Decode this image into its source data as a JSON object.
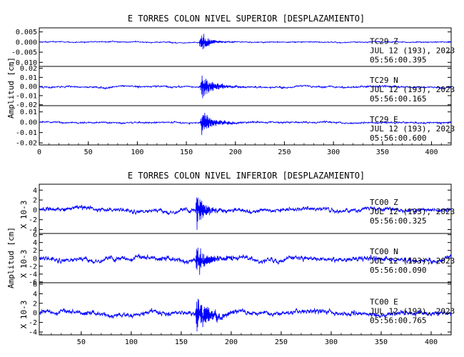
{
  "chart_data": [
    {
      "type": "line",
      "title": "E TORRES COLON NIVEL SUPERIOR [DESPLAZAMIENTO]",
      "ylabel": "Amplitud [cm]",
      "xlim": [
        0,
        420
      ],
      "x_ticks": [
        "0",
        "50",
        "100",
        "150",
        "200",
        "250",
        "300",
        "350",
        "400"
      ],
      "traces": [
        {
          "station": "TC29",
          "component": "Z",
          "date": "JUL 12 (193), 2023",
          "time": "05:56:00.395",
          "ylim": [
            -0.012,
            0.007
          ],
          "y_ticks": [
            "0.005",
            "0.000",
            "-0.005",
            "-0.010"
          ],
          "color": "#0000ff",
          "event_time": 163,
          "noise_amp": 0.0004,
          "peak_amp": 0.0065,
          "decay": 9
        },
        {
          "station": "TC29",
          "component": "N",
          "date": "JUL 12 (193), 2023",
          "time": "05:56:00.165",
          "ylim": [
            -0.021,
            0.022
          ],
          "y_ticks": [
            "0.02",
            "0.01",
            "0.00",
            "-0.01",
            "-0.02"
          ],
          "color": "#0000ff",
          "event_time": 164,
          "noise_amp": 0.0015,
          "peak_amp": 0.018,
          "decay": 13
        },
        {
          "station": "TC29",
          "component": "E",
          "date": "JUL 12 (193), 2023",
          "time": "05:56:00.600",
          "ylim": [
            -0.022,
            0.016
          ],
          "y_ticks": [
            "0.01",
            "0.00",
            "-0.01",
            "-0.02"
          ],
          "color": "#0000ff",
          "event_time": 164,
          "noise_amp": 0.0012,
          "peak_amp": 0.015,
          "decay": 13
        }
      ]
    },
    {
      "type": "line",
      "title": "E TORRES COLON NIVEL INFERIOR [DESPLAZAMIENTO]",
      "ylabel": "Amplitud [cm]",
      "scale_label": "X 10-3",
      "xlim": [
        8,
        420
      ],
      "x_ticks": [
        "50",
        "100",
        "150",
        "200",
        "250",
        "300",
        "350",
        "400"
      ],
      "traces": [
        {
          "station": "TC00",
          "component": "Z",
          "date": "JUL 12 (193), 2023",
          "time": "05:56:00.325",
          "ylim": [
            -4.8,
            5.2
          ],
          "y_ticks": [
            "4",
            "2",
            "0",
            "-2",
            "-4"
          ],
          "color": "#0000ff",
          "event_time": 164,
          "noise_amp": 0.7,
          "peak_amp": 4.8,
          "decay": 9
        },
        {
          "station": "TC00",
          "component": "N",
          "date": "JUL 12 (193), 2023",
          "time": "05:56:00.090",
          "ylim": [
            -6.2,
            6.3
          ],
          "y_ticks": [
            "6",
            "4",
            "2",
            "0",
            "-2",
            "-4",
            "-6"
          ],
          "color": "#0000ff",
          "event_time": 164,
          "noise_amp": 1.0,
          "peak_amp": 5.8,
          "decay": 11
        },
        {
          "station": "TC00",
          "component": "E",
          "date": "JUL 12 (193), 2023",
          "time": "05:56:00.765",
          "ylim": [
            -4.6,
            6.3
          ],
          "y_ticks": [
            "6",
            "4",
            "2",
            "0",
            "-2",
            "-4"
          ],
          "color": "#0000ff",
          "event_time": 164,
          "noise_amp": 0.8,
          "peak_amp": 5.5,
          "decay": 13
        }
      ]
    }
  ]
}
